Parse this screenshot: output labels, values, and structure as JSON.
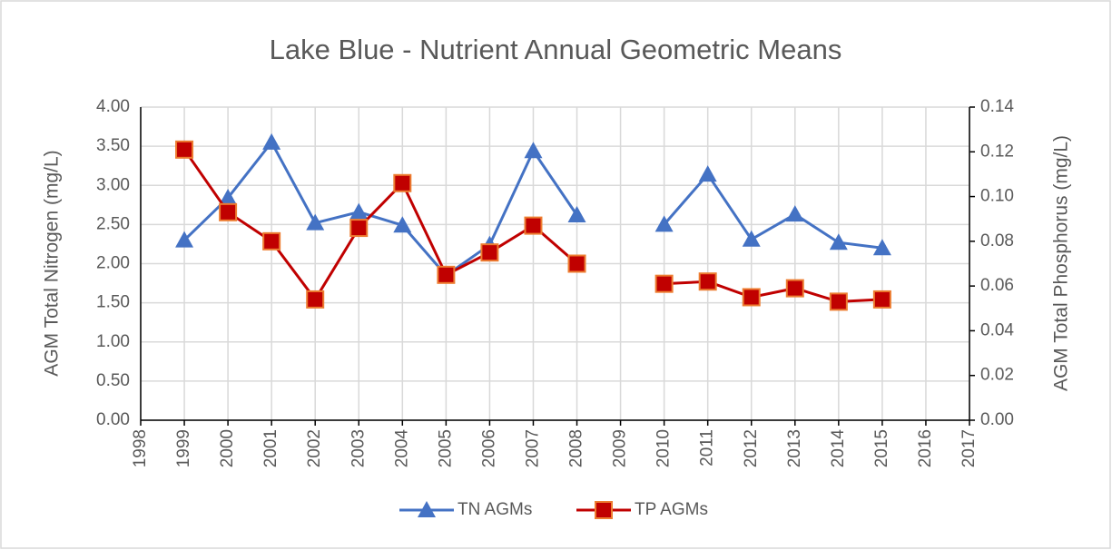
{
  "chart_data": {
    "type": "line",
    "title": "Lake Blue - Nutrient Annual Geometric Means",
    "y_label": "AGM Total Nitrogen (mg/L)",
    "y2_label": "AGM Total Phosphorus (mg/L)",
    "x": [
      1999,
      2000,
      2001,
      2002,
      2003,
      2004,
      2005,
      2006,
      2007,
      2008,
      2009,
      2010,
      2011,
      2012,
      2013,
      2014,
      2015
    ],
    "series": [
      {
        "name": "TN AGMs",
        "color": "#4472c4",
        "marker": "triangle",
        "values": [
          2.3,
          2.84,
          3.55,
          2.52,
          2.66,
          2.49,
          1.85,
          2.24,
          3.44,
          2.62,
          null,
          2.5,
          3.14,
          2.31,
          2.63,
          2.27,
          2.2
        ]
      },
      {
        "name": "TP AGMs",
        "color": "#c00000",
        "marker": "square",
        "marker_edge_color": "#ed7d31",
        "axis": "y2",
        "values": [
          0.121,
          0.093,
          0.08,
          0.054,
          0.086,
          0.106,
          0.065,
          0.075,
          0.087,
          0.07,
          null,
          0.061,
          0.062,
          0.055,
          0.059,
          0.053,
          0.054
        ]
      }
    ],
    "xlim": [
      1998,
      2017
    ],
    "xticks": [
      1998,
      1999,
      2000,
      2001,
      2002,
      2003,
      2004,
      2005,
      2006,
      2007,
      2008,
      2009,
      2010,
      2011,
      2012,
      2013,
      2014,
      2015,
      2016,
      2017
    ],
    "ylim": [
      0,
      4
    ],
    "yticks": [
      {
        "value": 0,
        "label": "0.00"
      },
      {
        "value": 0.5,
        "label": "0.50"
      },
      {
        "value": 1,
        "label": "1.00"
      },
      {
        "value": 1.5,
        "label": "1.50"
      },
      {
        "value": 2,
        "label": "2.00"
      },
      {
        "value": 2.5,
        "label": "2.50"
      },
      {
        "value": 3,
        "label": "3.00"
      },
      {
        "value": 3.5,
        "label": "3.50"
      },
      {
        "value": 4,
        "label": "4.00"
      }
    ],
    "y2lim": [
      0,
      0.14
    ],
    "y2ticks": [
      {
        "value": 0,
        "label": "0.00"
      },
      0.02,
      0.04,
      0.06,
      0.08,
      {
        "value": 0.1,
        "label": "0.10"
      },
      0.12,
      0.14
    ],
    "grid": true,
    "legend": "bottom"
  }
}
